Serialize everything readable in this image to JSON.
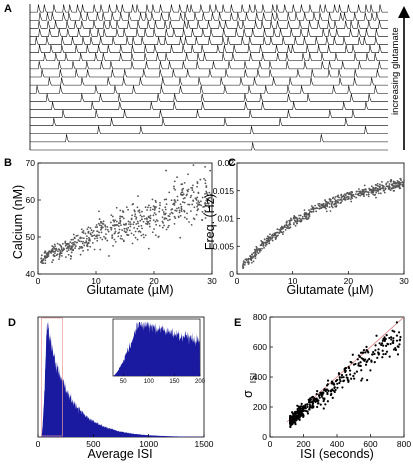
{
  "panels": {
    "a": {
      "letter": "A"
    },
    "b": {
      "letter": "B"
    },
    "c": {
      "letter": "C"
    },
    "d": {
      "letter": "D"
    },
    "e": {
      "letter": "E"
    }
  },
  "colors": {
    "trace": "#000000",
    "scatter": "#555555",
    "histogram": "#1a1aa0",
    "fit_line": "#d98080",
    "points_e": "#000000",
    "inset_box": "#e89a9a"
  },
  "chart_data": [
    {
      "id": "A",
      "type": "line",
      "description_text": "increasing glutamate",
      "traces": 18,
      "trace_spike_counts": [
        1,
        2,
        4,
        6,
        9,
        11,
        13,
        16,
        18,
        21,
        24,
        27,
        30,
        33,
        36,
        39,
        42,
        45
      ]
    },
    {
      "id": "B",
      "type": "scatter",
      "xlabel": "Glutamate (µM)",
      "ylabel": "Calcium (nM)",
      "xlim": [
        0,
        30
      ],
      "ylim": [
        40,
        70
      ],
      "xticks": [
        0,
        10,
        20,
        30
      ],
      "yticks": [
        40,
        50,
        60,
        70
      ],
      "trend": {
        "x": [
          0,
          10,
          20,
          30
        ],
        "y": [
          44,
          50.5,
          56,
          61.5
        ]
      },
      "spread": 2.5
    },
    {
      "id": "C",
      "type": "scatter",
      "xlabel": "Glutamate (µM)",
      "ylabel": "Freq. (Hz)",
      "xlim": [
        0,
        30
      ],
      "ylim": [
        0,
        0.02
      ],
      "xticks": [
        0,
        10,
        20,
        30
      ],
      "yticks": [
        0,
        0.005,
        0.01,
        0.015,
        0.02
      ],
      "ytick_labels": [
        "0",
        "0.005",
        "0.01",
        "0.015",
        "0.02"
      ],
      "trend": {
        "x": [
          1,
          5,
          10,
          15,
          20,
          25,
          30
        ],
        "y": [
          0.0015,
          0.0055,
          0.0095,
          0.012,
          0.014,
          0.0152,
          0.0163
        ]
      },
      "spread": 0.0006
    },
    {
      "id": "D",
      "type": "bar",
      "xlabel": "Average ISI",
      "xlim": [
        0,
        1500
      ],
      "xticks": [
        0,
        500,
        1000,
        1500
      ],
      "peak_x": 80,
      "inset": {
        "xlim": [
          30,
          200
        ],
        "xticks": [
          50,
          100,
          150,
          200
        ]
      }
    },
    {
      "id": "E",
      "type": "scatter",
      "xlabel": "ISI (seconds)",
      "ylabel_main": "σ",
      "ylabel_sub": "ISI",
      "xlim": [
        0,
        800
      ],
      "ylim": [
        0,
        800
      ],
      "xticks": [
        0,
        200,
        400,
        600,
        800
      ],
      "yticks": [
        0,
        200,
        400,
        600,
        800
      ],
      "fit_line": {
        "x": [
          100,
          800
        ],
        "y": [
          100,
          800
        ]
      }
    }
  ]
}
